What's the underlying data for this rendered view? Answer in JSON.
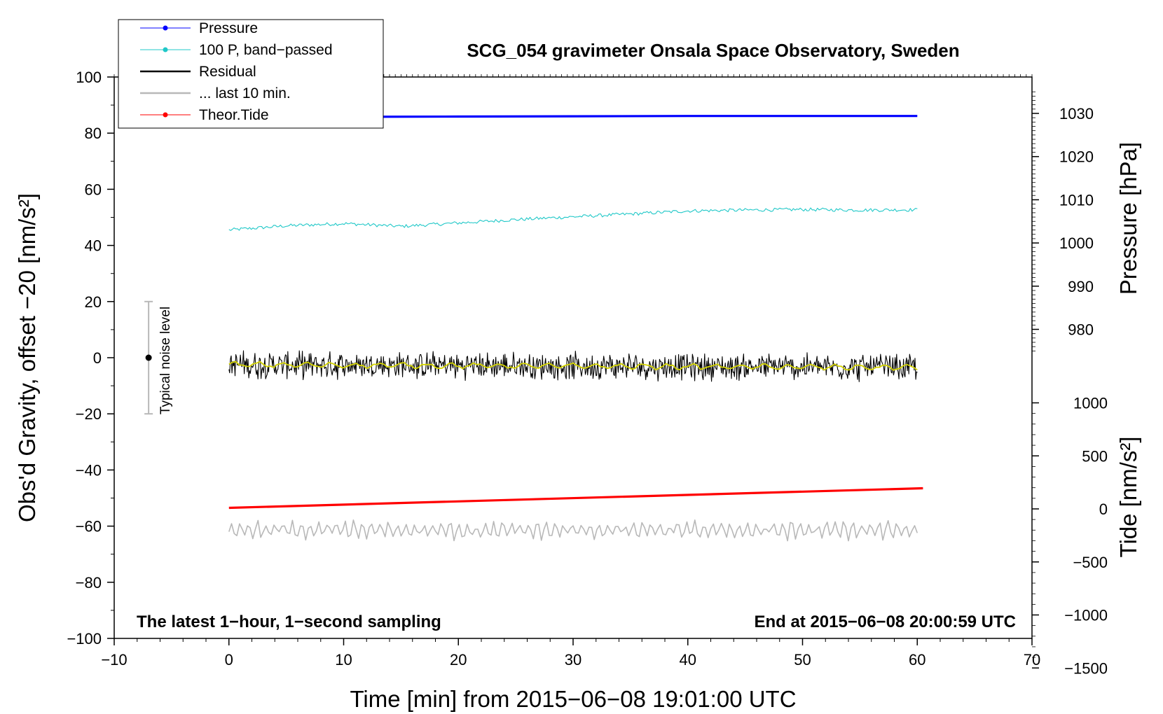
{
  "chart_data": {
    "type": "line",
    "title": "SCG_054 gravimeter Onsala Space Observatory, Sweden",
    "xlabel": "Time [min] from 2015−06−08 19:01:00 UTC",
    "ylabel_left": "Obs'd Gravity, offset −20 [nm/s²]",
    "ylabel_right_top": "Pressure [hPa]",
    "ylabel_right_bottom": "Tide [nm/s²]",
    "xlim": [
      -10,
      70
    ],
    "ylim": [
      -100,
      100
    ],
    "pressure_axis_lim": [
      975,
      1035
    ],
    "tide_axis_lim": [
      -1500,
      1000
    ],
    "x_ticks": [
      "−10",
      "0",
      "10",
      "20",
      "30",
      "40",
      "50",
      "60",
      "70"
    ],
    "y_ticks": [
      "−100",
      "−80",
      "−60",
      "−40",
      "−20",
      "0",
      "20",
      "40",
      "60",
      "80",
      "100"
    ],
    "pressure_ticks": [
      "980",
      "990",
      "1000",
      "1010",
      "1020",
      "1030"
    ],
    "tide_ticks": [
      "−1500",
      "−1000",
      "−500",
      "0",
      "500",
      "1000"
    ],
    "note_left": "The latest 1−hour, 1−second sampling",
    "note_right": "End at 2015−06−08 20:00:59 UTC",
    "noise_label": "Typical noise level",
    "noise_bar": {
      "x": -7,
      "center": 0,
      "half_range": 20
    },
    "legend": {
      "placement": "top-left",
      "entries": [
        {
          "label": "Pressure",
          "color": "#0000ff",
          "marker": true
        },
        {
          "label": "100 P, band−passed",
          "color": "#20c8c8",
          "marker": true
        },
        {
          "label": "Residual",
          "color": "#000000",
          "marker": false
        },
        {
          "label": "... last 10 min.",
          "color": "#b8b8b8",
          "marker": false
        },
        {
          "label": "Theor.Tide",
          "color": "#ff0000",
          "marker": true
        }
      ]
    },
    "series": [
      {
        "name": "Pressure",
        "color": "#0000ff",
        "x": [
          0,
          10,
          20,
          30,
          40,
          50,
          60
        ],
        "y": [
          85.6,
          85.8,
          85.9,
          86.0,
          86.1,
          86.1,
          86.1
        ]
      },
      {
        "name": "100 P, band−passed",
        "color": "#20c8c8",
        "x": [
          0,
          5,
          10,
          15,
          20,
          25,
          30,
          35,
          40,
          45,
          50,
          55,
          60
        ],
        "y": [
          45.5,
          47.0,
          47.8,
          46.8,
          48.0,
          49.2,
          50.2,
          51.2,
          52.3,
          52.6,
          52.8,
          52.6,
          52.7
        ]
      },
      {
        "name": "Residual",
        "color": "#000000",
        "x": [
          0,
          60
        ],
        "y": [
          -2.5,
          -3.5
        ],
        "noise_amplitude": 5
      },
      {
        "name": "Residual smoothed",
        "color": "#d4d400",
        "x": [
          0,
          60
        ],
        "y": [
          -2.5,
          -3.5
        ]
      },
      {
        "name": "... last 10 min.",
        "color": "#b8b8b8",
        "x": [
          0,
          60
        ],
        "y": [
          -61.5,
          -61.5
        ],
        "noise_amplitude": 3
      },
      {
        "name": "Theor.Tide",
        "color": "#ff0000",
        "x": [
          0,
          60.5
        ],
        "y": [
          -53.5,
          -46.5
        ]
      }
    ]
  }
}
